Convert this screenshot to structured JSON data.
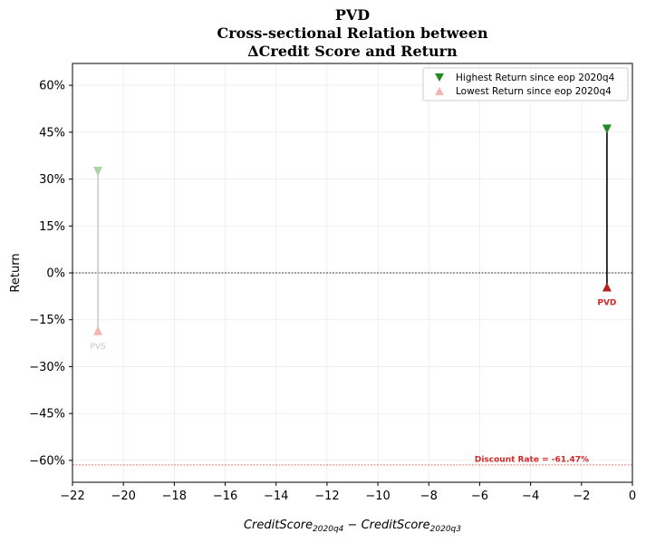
{
  "chart_data": {
    "type": "scatter",
    "title_lines": [
      "PVD",
      "Cross-sectional Relation between",
      "ΔCredit Score and Return"
    ],
    "xlabel_main": "CreditScore",
    "xlabel_sub1": "2020q4",
    "xlabel_minus": " − ",
    "xlabel_main2": "CreditScore",
    "xlabel_sub2": "2020q3",
    "ylabel": "Return",
    "xlim": [
      -22,
      0
    ],
    "ylim": [
      -0.67,
      0.67
    ],
    "x_ticks": [
      -22,
      -20,
      -18,
      -16,
      -14,
      -12,
      -10,
      -8,
      -6,
      -4,
      -2,
      0
    ],
    "x_tick_labels": [
      "−22",
      "−20",
      "−18",
      "−16",
      "−14",
      "−12",
      "−10",
      "−8",
      "−6",
      "−4",
      "−2",
      "0"
    ],
    "y_ticks": [
      -0.6,
      -0.45,
      -0.3,
      -0.15,
      0,
      0.15,
      0.3,
      0.45,
      0.6
    ],
    "y_tick_labels": [
      "−60%",
      "−45%",
      "−30%",
      "−15%",
      "0%",
      "15%",
      "30%",
      "45%",
      "60%"
    ],
    "grid": true,
    "legend_position": "top-right",
    "legend": [
      {
        "label": "Highest Return since eop 2020q4",
        "marker": "triangle-down",
        "color": "#228b22"
      },
      {
        "label": "Lowest Return since eop 2020q4",
        "marker": "triangle-up",
        "color": "#f4b6b0"
      }
    ],
    "points": [
      {
        "ticker": "PVS",
        "x": -21,
        "high": 0.325,
        "low": -0.185,
        "highlight": false
      },
      {
        "ticker": "PVD",
        "x": -1,
        "high": 0.46,
        "low": -0.045,
        "highlight": true
      }
    ],
    "discount_rate": -0.6147,
    "discount_label": "Discount Rate = -61.47%",
    "colors": {
      "high": "#228b22",
      "low": "#b22222",
      "faded_high": "#a8d5a8",
      "faded_low": "#f4b6b0",
      "faded_line": "#cccccc",
      "highlight_label": "#d62728",
      "faded_label": "#c8c8c8",
      "discount": "#d62728"
    }
  }
}
